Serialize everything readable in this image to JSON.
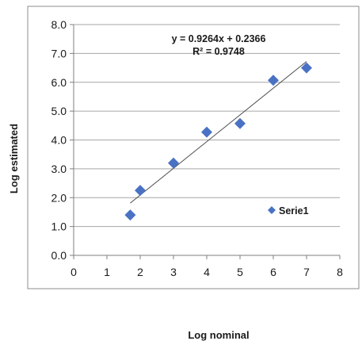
{
  "chart_data": {
    "type": "scatter",
    "xlabel": "Log nominal",
    "ylabel": "Log estimated",
    "xlim": [
      0,
      8
    ],
    "ylim": [
      0,
      8
    ],
    "x_ticks": [
      "0",
      "1",
      "2",
      "3",
      "4",
      "5",
      "6",
      "7",
      "8"
    ],
    "y_ticks": [
      "0.0",
      "1.0",
      "2.0",
      "3.0",
      "4.0",
      "5.0",
      "6.0",
      "7.0",
      "8.0"
    ],
    "grid": "horizontal",
    "legend_position": "right",
    "series": [
      {
        "name": "Serie1",
        "color": "#4a72c4",
        "marker": "diamond",
        "points": [
          {
            "x": 1.7,
            "y": 1.4
          },
          {
            "x": 2.0,
            "y": 2.25
          },
          {
            "x": 3.0,
            "y": 3.2
          },
          {
            "x": 4.0,
            "y": 4.27
          },
          {
            "x": 5.0,
            "y": 4.57
          },
          {
            "x": 6.0,
            "y": 6.07
          },
          {
            "x": 7.0,
            "y": 6.5
          }
        ]
      }
    ],
    "trendline": {
      "slope": 0.9264,
      "intercept": 0.2366,
      "x_range": [
        1.7,
        7.0
      ],
      "equation": "y = 0.9264x + 0.2366",
      "r_squared": "R² = 0.9748"
    }
  }
}
